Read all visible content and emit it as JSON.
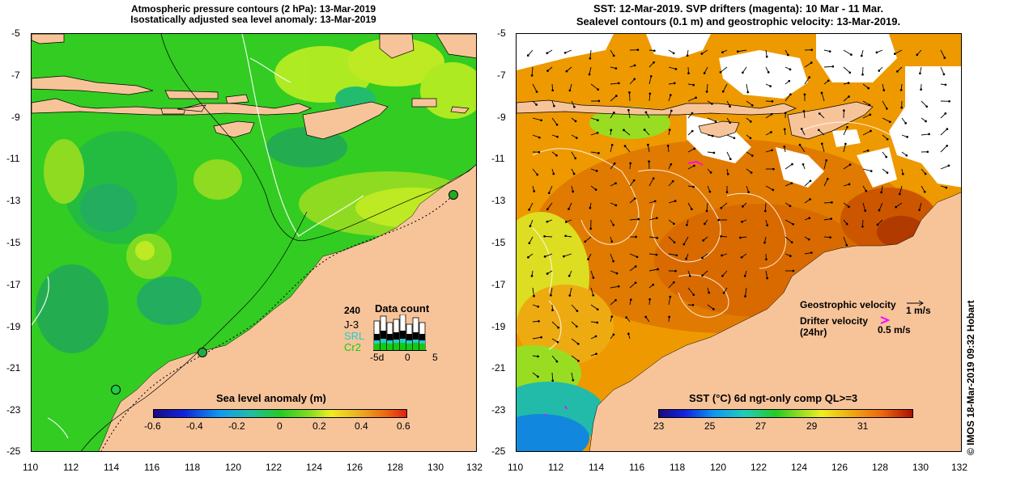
{
  "left_panel": {
    "title_line1": "Atmospheric pressure contours (2 hPa): 13-Mar-2019",
    "title_line2": "Isostatically adjusted sea level anomaly: 13-Mar-2019",
    "colorbar_label": "Sea level anomaly (m)",
    "colorbar_ticks": [
      "-0.6",
      "-0.4",
      "-0.2",
      "0",
      "0.2",
      "0.4",
      "0.6"
    ],
    "data_count": {
      "label": "Data count",
      "max": "240",
      "missions": [
        "J-3",
        "SRL",
        "Cr2"
      ],
      "mission_colors": [
        "#000000",
        "#22cccc",
        "#11cc11"
      ],
      "axis_ticks": [
        "-5d",
        "0",
        "5"
      ]
    }
  },
  "right_panel": {
    "title_line1": "SST: 12-Mar-2019. SVP drifters (magenta): 10 Mar - 11 Mar.",
    "title_line2": "Sealevel contours (0.1 m) and geostrophic velocity: 13-Mar-2019.",
    "colorbar_label": "SST (°C) 6d ngt-only comp QL>=3",
    "colorbar_ticks": [
      "23",
      "25",
      "27",
      "29",
      "31"
    ],
    "legend": {
      "geostrophic_label": "Geostrophic velocity",
      "geostrophic_scale": "1 m/s",
      "drifter_label": "Drifter velocity",
      "drifter_sub": "(24hr)",
      "drifter_scale": "0.5 m/s",
      "drifter_color": "#ff00ff"
    }
  },
  "axes": {
    "lat_ticks": [
      "-5",
      "-7",
      "-9",
      "-11",
      "-13",
      "-15",
      "-17",
      "-19",
      "-21",
      "-23",
      "-25"
    ],
    "lon_ticks": [
      "110",
      "112",
      "114",
      "116",
      "118",
      "120",
      "122",
      "124",
      "126",
      "128",
      "130",
      "132"
    ]
  },
  "credit": "© IMOS 18-Mar-2019 09:32 Hobart",
  "colors": {
    "land": "#f7c49a",
    "sla_zero": "#22cc22",
    "sst_warm": "#ee8800"
  }
}
